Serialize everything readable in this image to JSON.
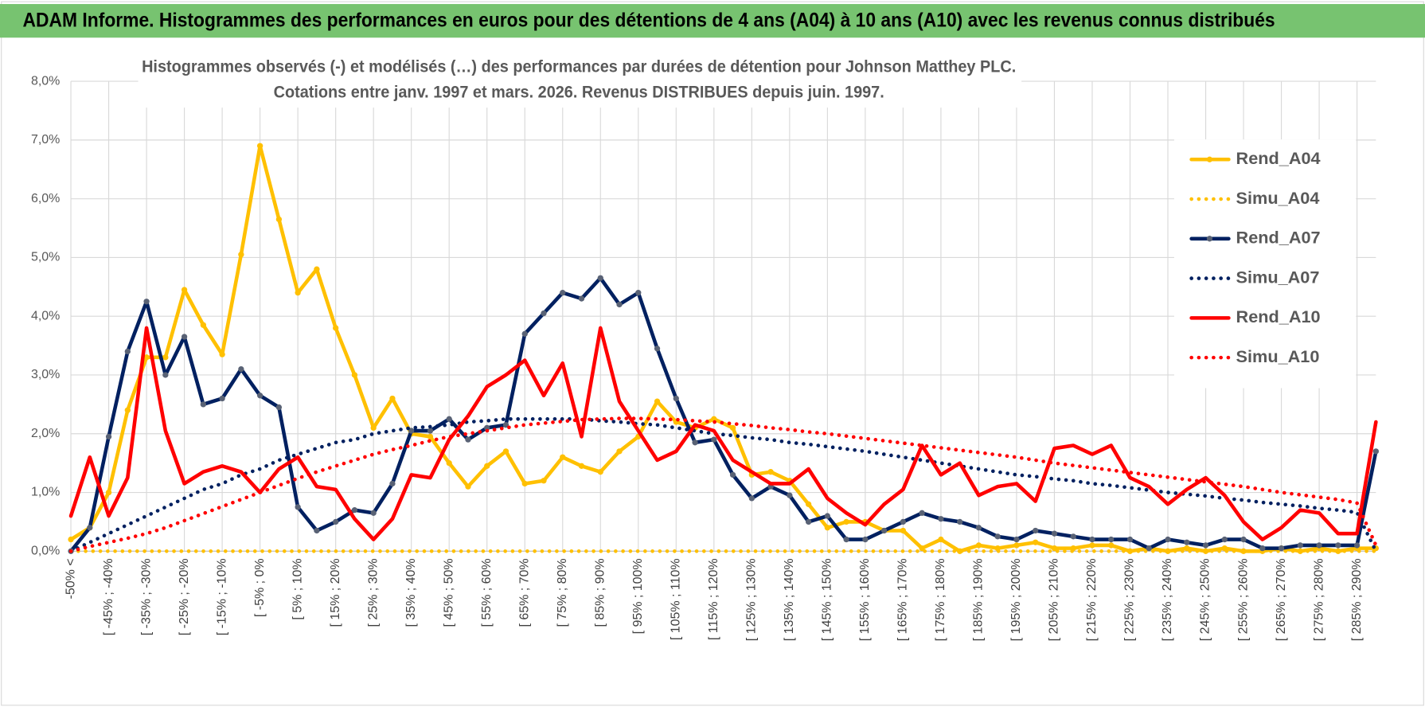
{
  "header": {
    "title": "ADAM Informe. Histogrammes des performances en euros pour des détentions de 4 ans (A04) à 10 ans (A10) avec les revenus connus distribués"
  },
  "chart_data": {
    "type": "line",
    "title": "Histogrammes observés (-) et modélisés (…) des performances par durées de détention pour Johnson Matthey PLC.",
    "subtitle": "Cotations entre janv. 1997 et mars. 2026. Revenus DISTRIBUES depuis juin. 1997.",
    "categories": [
      "-50% <",
      null,
      "[ -45% ; -40%",
      null,
      "[ -35% ; -30%",
      null,
      "[ -25% ; -20%",
      null,
      "[ -15% ; -10%",
      null,
      "[ -5% ; 0%",
      null,
      "[ 5% ; 10%",
      null,
      "[ 15% ; 20%",
      null,
      "[ 25% ; 30%",
      null,
      "[ 35% ; 40%",
      null,
      "[ 45% ; 50%",
      null,
      "[ 55% ; 60%",
      null,
      "[ 65% ; 70%",
      null,
      "[ 75% ; 80%",
      null,
      "[ 85% ; 90%",
      null,
      "[ 95% ; 100%",
      null,
      "[ 105% ; 110%",
      null,
      "[ 115% ; 120%",
      null,
      "[ 125% ; 130%",
      null,
      "[ 135% ; 140%",
      null,
      "[ 145% ; 150%",
      null,
      "[ 155% ; 160%",
      null,
      "[ 165% ; 170%",
      null,
      "[ 175% ; 180%",
      null,
      "[ 185% ; 190%",
      null,
      "[ 195% ; 200%",
      null,
      "[ 205% ; 210%",
      null,
      "[ 215% ; 220%",
      null,
      "[ 225% ; 230%",
      null,
      "[ 235% ; 240%",
      null,
      "[ 245% ; 250%",
      null,
      "[ 255% ; 260%",
      null,
      "[ 265% ; 270%",
      null,
      "[ 275% ; 280%",
      null,
      "[ 285% ; 290%",
      null
    ],
    "series": [
      {
        "name": "Rend_A04",
        "color": "#ffc000",
        "style": "solid",
        "marker": "#ffc000",
        "values": [
          0.2,
          0.4,
          1.0,
          2.4,
          3.3,
          3.3,
          4.45,
          3.85,
          3.35,
          5.05,
          6.9,
          5.65,
          4.4,
          4.8,
          3.8,
          3.0,
          2.1,
          2.6,
          2.0,
          1.95,
          1.5,
          1.1,
          1.45,
          1.7,
          1.15,
          1.2,
          1.6,
          1.45,
          1.35,
          1.7,
          1.95,
          2.55,
          2.2,
          2.1,
          2.25,
          2.1,
          1.3,
          1.35,
          1.2,
          0.8,
          0.4,
          0.5,
          0.5,
          0.35,
          0.35,
          0.05,
          0.2,
          0.0,
          0.1,
          0.05,
          0.1,
          0.15,
          0.05,
          0.05,
          0.1,
          0.1,
          0.0,
          0.05,
          0.0,
          0.05,
          0.0,
          0.05,
          0.0,
          0.0,
          0.05,
          0.0,
          0.05,
          0.0,
          0.05,
          0.05
        ]
      },
      {
        "name": "Simu_A04",
        "color": "#ffc000",
        "style": "dotted",
        "values": [
          0,
          0,
          0,
          0,
          0,
          0,
          0,
          0,
          0,
          0,
          0,
          0,
          0,
          0,
          0,
          0,
          0,
          0,
          0,
          0,
          0,
          0,
          0,
          0,
          0,
          0,
          0,
          0,
          0,
          0,
          0,
          0,
          0,
          0,
          0,
          0,
          0,
          0,
          0,
          0,
          0,
          0,
          0,
          0,
          0,
          0,
          0,
          0,
          0,
          0,
          0,
          0,
          0,
          0,
          0,
          0,
          0,
          0,
          0,
          0,
          0,
          0,
          0,
          0,
          0,
          0,
          0,
          0,
          0,
          0
        ]
      },
      {
        "name": "Rend_A07",
        "color": "#002060",
        "style": "solid",
        "marker": "#596275",
        "values": [
          0.0,
          0.4,
          1.95,
          3.4,
          4.25,
          3.0,
          3.65,
          2.5,
          2.6,
          3.1,
          2.65,
          2.45,
          0.75,
          0.35,
          0.5,
          0.7,
          0.65,
          1.15,
          2.05,
          2.05,
          2.25,
          1.9,
          2.1,
          2.15,
          3.7,
          4.05,
          4.4,
          4.3,
          4.65,
          4.2,
          4.4,
          3.45,
          2.6,
          1.85,
          1.9,
          1.3,
          0.9,
          1.1,
          0.95,
          0.5,
          0.6,
          0.2,
          0.2,
          0.35,
          0.5,
          0.65,
          0.55,
          0.5,
          0.4,
          0.25,
          0.2,
          0.35,
          0.3,
          0.25,
          0.2,
          0.2,
          0.2,
          0.05,
          0.2,
          0.15,
          0.1,
          0.2,
          0.2,
          0.05,
          0.05,
          0.1,
          0.1,
          0.1,
          0.1,
          1.7
        ]
      },
      {
        "name": "Simu_A07",
        "color": "#002060",
        "style": "dotted",
        "values": [
          0.0,
          0.15,
          0.3,
          0.45,
          0.6,
          0.75,
          0.9,
          1.05,
          1.15,
          1.3,
          1.4,
          1.55,
          1.65,
          1.75,
          1.85,
          1.9,
          2.0,
          2.05,
          2.1,
          2.12,
          2.15,
          2.2,
          2.22,
          2.25,
          2.25,
          2.25,
          2.25,
          2.25,
          2.22,
          2.2,
          2.17,
          2.15,
          2.1,
          2.05,
          2.0,
          1.97,
          1.93,
          1.9,
          1.85,
          1.82,
          1.78,
          1.74,
          1.7,
          1.65,
          1.6,
          1.55,
          1.5,
          1.45,
          1.4,
          1.35,
          1.3,
          1.27,
          1.23,
          1.2,
          1.15,
          1.12,
          1.08,
          1.04,
          1.0,
          0.97,
          0.94,
          0.9,
          0.87,
          0.83,
          0.8,
          0.77,
          0.73,
          0.7,
          0.66,
          0.0
        ]
      },
      {
        "name": "Rend_A10",
        "color": "#ff0000",
        "style": "solid",
        "values": [
          0.6,
          1.6,
          0.6,
          1.25,
          3.8,
          2.05,
          1.15,
          1.35,
          1.45,
          1.35,
          1.0,
          1.4,
          1.6,
          1.1,
          1.05,
          0.55,
          0.2,
          0.55,
          1.3,
          1.25,
          1.9,
          2.3,
          2.8,
          3.0,
          3.25,
          2.65,
          3.2,
          1.95,
          3.8,
          2.55,
          2.05,
          1.55,
          1.7,
          2.15,
          2.05,
          1.55,
          1.35,
          1.15,
          1.15,
          1.4,
          0.9,
          0.65,
          0.45,
          0.8,
          1.05,
          1.8,
          1.3,
          1.5,
          0.95,
          1.1,
          1.15,
          0.85,
          1.75,
          1.8,
          1.65,
          1.8,
          1.25,
          1.1,
          0.8,
          1.05,
          1.25,
          0.95,
          0.5,
          0.2,
          0.4,
          0.7,
          0.65,
          0.3,
          0.3,
          2.2
        ]
      },
      {
        "name": "Simu_A10",
        "color": "#ff0000",
        "style": "dotted",
        "values": [
          0.0,
          0.08,
          0.15,
          0.22,
          0.3,
          0.4,
          0.52,
          0.64,
          0.76,
          0.88,
          1.0,
          1.12,
          1.24,
          1.35,
          1.45,
          1.55,
          1.65,
          1.73,
          1.8,
          1.88,
          1.95,
          2.0,
          2.05,
          2.1,
          2.15,
          2.18,
          2.21,
          2.24,
          2.25,
          2.26,
          2.26,
          2.25,
          2.24,
          2.22,
          2.2,
          2.17,
          2.14,
          2.1,
          2.07,
          2.03,
          2.0,
          1.96,
          1.92,
          1.88,
          1.84,
          1.8,
          1.76,
          1.72,
          1.68,
          1.64,
          1.6,
          1.55,
          1.5,
          1.46,
          1.42,
          1.38,
          1.34,
          1.3,
          1.26,
          1.22,
          1.18,
          1.14,
          1.1,
          1.05,
          1.0,
          0.96,
          0.92,
          0.88,
          0.82,
          0.1
        ]
      }
    ],
    "ylim": [
      0,
      8
    ],
    "yticks": [
      {
        "value": 0,
        "label": "0,0%"
      },
      {
        "value": 1,
        "label": "1,0%"
      },
      {
        "value": 2,
        "label": "2,0%"
      },
      {
        "value": 3,
        "label": "3,0%"
      },
      {
        "value": 4,
        "label": "4,0%"
      },
      {
        "value": 5,
        "label": "5,0%"
      },
      {
        "value": 6,
        "label": "6,0%"
      },
      {
        "value": 7,
        "label": "7,0%"
      },
      {
        "value": 8,
        "label": "8,0%"
      }
    ],
    "grid": true,
    "legend": "upper right"
  }
}
